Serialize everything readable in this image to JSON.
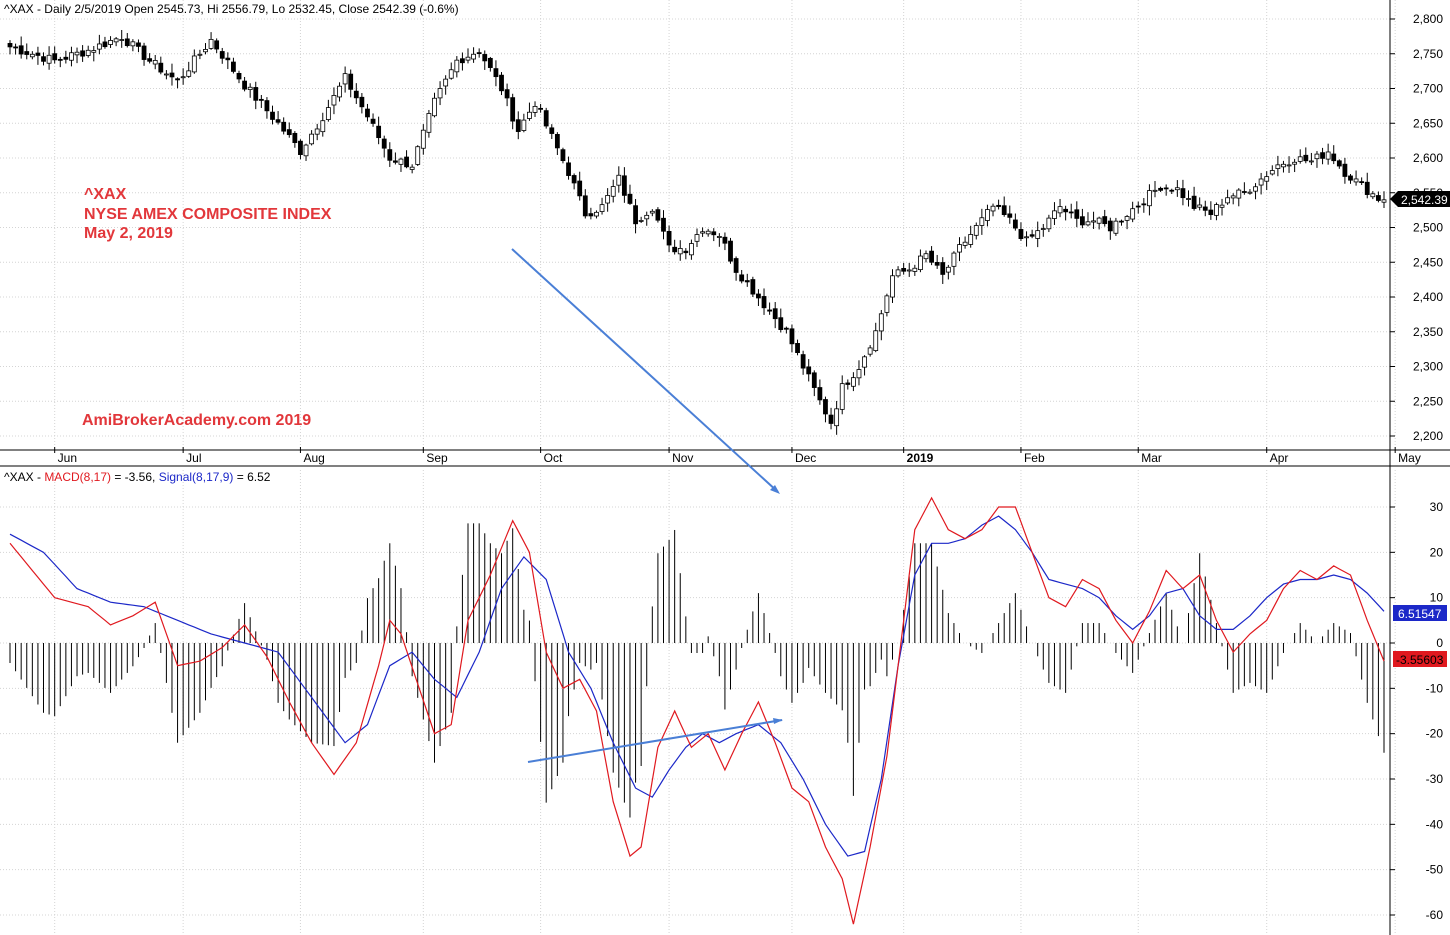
{
  "header": {
    "price": "^XAX - Daily 2/5/2019 Open 2545.73, Hi 2556.79, Lo 2532.45, Close 2542.39 (-0.6%)",
    "macd_prefix": "^XAX - ",
    "macd_label": "MACD(8,17)",
    "macd_value": " = -3.56, ",
    "signal_label": "Signal(8,17,9)",
    "signal_value": " = 6.52"
  },
  "annotations": {
    "symbol": "^XAX",
    "index_name": "NYSE AMEX COMPOSITE INDEX",
    "date": "May 2, 2019",
    "watermark": "AmiBrokerAcademy.com  2019"
  },
  "badges": {
    "last_close": "2,542.39",
    "signal": "6.51547",
    "macd": "-3.55603"
  },
  "colors": {
    "macd": "#e0191f",
    "signal": "#1c28c8",
    "text_red": "#e2373b",
    "trend_arrow": "#4a7fd6",
    "grid": "#d4d4d4"
  },
  "chart_data": [
    {
      "type": "candlestick",
      "title": "^XAX - Daily 2/5/2019 Open 2545.73, Hi 2556.79, Lo 2532.45, Close 2542.39 (-0.6%)",
      "x_month_labels": [
        "Jun",
        "Jul",
        "Aug",
        "Sep",
        "Oct",
        "Nov",
        "Dec",
        "2019",
        "Feb",
        "Mar",
        "Apr",
        "May"
      ],
      "ylim": [
        2160,
        2830
      ],
      "y_ticks": [
        "2,200",
        "2,250",
        "2,300",
        "2,350",
        "2,400",
        "2,450",
        "2,500",
        "2,550",
        "2,600",
        "2,650",
        "2,700",
        "2,750",
        "2,800"
      ],
      "grid": true,
      "close_anchors": [
        [
          0,
          2760
        ],
        [
          8,
          2740
        ],
        [
          14,
          2755
        ],
        [
          20,
          2775
        ],
        [
          25,
          2740
        ],
        [
          30,
          2710
        ],
        [
          36,
          2770
        ],
        [
          42,
          2705
        ],
        [
          48,
          2650
        ],
        [
          52,
          2610
        ],
        [
          56,
          2660
        ],
        [
          60,
          2715
        ],
        [
          64,
          2660
        ],
        [
          68,
          2600
        ],
        [
          72,
          2590
        ],
        [
          76,
          2680
        ],
        [
          80,
          2740
        ],
        [
          84,
          2755
        ],
        [
          88,
          2700
        ],
        [
          91,
          2640
        ],
        [
          94,
          2680
        ],
        [
          97,
          2630
        ],
        [
          100,
          2580
        ],
        [
          103,
          2520
        ],
        [
          106,
          2530
        ],
        [
          109,
          2570
        ],
        [
          112,
          2510
        ],
        [
          115,
          2530
        ],
        [
          118,
          2470
        ],
        [
          121,
          2470
        ],
        [
          124,
          2500
        ],
        [
          127,
          2490
        ],
        [
          130,
          2440
        ],
        [
          133,
          2410
        ],
        [
          136,
          2380
        ],
        [
          139,
          2350
        ],
        [
          142,
          2300
        ],
        [
          145,
          2250
        ],
        [
          147,
          2220
        ],
        [
          149,
          2270
        ],
        [
          152,
          2300
        ],
        [
          155,
          2350
        ],
        [
          158,
          2430
        ],
        [
          161,
          2440
        ],
        [
          164,
          2460
        ],
        [
          167,
          2430
        ],
        [
          170,
          2470
        ],
        [
          173,
          2500
        ],
        [
          176,
          2530
        ],
        [
          179,
          2510
        ],
        [
          182,
          2480
        ],
        [
          185,
          2500
        ],
        [
          188,
          2530
        ],
        [
          191,
          2510
        ],
        [
          194,
          2510
        ],
        [
          197,
          2500
        ],
        [
          200,
          2520
        ],
        [
          203,
          2540
        ],
        [
          206,
          2560
        ],
        [
          209,
          2555
        ],
        [
          212,
          2530
        ],
        [
          215,
          2520
        ],
        [
          218,
          2545
        ],
        [
          221,
          2550
        ],
        [
          224,
          2570
        ],
        [
          227,
          2590
        ],
        [
          230,
          2600
        ],
        [
          233,
          2595
        ],
        [
          236,
          2610
        ],
        [
          239,
          2580
        ],
        [
          242,
          2560
        ],
        [
          245,
          2542
        ]
      ]
    },
    {
      "type": "line",
      "title": "^XAX - MACD(8,17) = -3.56, Signal(8,17,9) = 6.52",
      "ylim": [
        -63,
        34
      ],
      "y_ticks": [
        "-60",
        "-50",
        "-40",
        "-30",
        "-20",
        "-10",
        "0",
        "10",
        "20",
        "30"
      ],
      "grid": true,
      "series": [
        {
          "name": "MACD(8,17)",
          "color": "#e0191f",
          "points": [
            [
              0,
              22
            ],
            [
              8,
              10
            ],
            [
              14,
              8
            ],
            [
              18,
              4
            ],
            [
              22,
              6
            ],
            [
              26,
              9
            ],
            [
              30,
              -5
            ],
            [
              34,
              -4
            ],
            [
              38,
              -1
            ],
            [
              42,
              4
            ],
            [
              46,
              -3
            ],
            [
              50,
              -13
            ],
            [
              54,
              -22
            ],
            [
              58,
              -29
            ],
            [
              62,
              -22
            ],
            [
              66,
              -5
            ],
            [
              68,
              5
            ],
            [
              70,
              2
            ],
            [
              73,
              -9
            ],
            [
              76,
              -20
            ],
            [
              79,
              -18
            ],
            [
              82,
              5
            ],
            [
              86,
              15
            ],
            [
              90,
              27
            ],
            [
              93,
              20
            ],
            [
              96,
              -2
            ],
            [
              99,
              -10
            ],
            [
              102,
              -8
            ],
            [
              105,
              -15
            ],
            [
              108,
              -35
            ],
            [
              111,
              -47
            ],
            [
              113,
              -45
            ],
            [
              116,
              -23
            ],
            [
              119,
              -15
            ],
            [
              122,
              -23
            ],
            [
              125,
              -20
            ],
            [
              128,
              -28
            ],
            [
              131,
              -20
            ],
            [
              134,
              -13
            ],
            [
              137,
              -22
            ],
            [
              140,
              -32
            ],
            [
              143,
              -35
            ],
            [
              146,
              -45
            ],
            [
              149,
              -52
            ],
            [
              151,
              -62
            ],
            [
              154,
              -45
            ],
            [
              157,
              -25
            ],
            [
              159,
              -5
            ],
            [
              162,
              25
            ],
            [
              165,
              32
            ],
            [
              168,
              25
            ],
            [
              171,
              23
            ],
            [
              174,
              25
            ],
            [
              177,
              30
            ],
            [
              180,
              30
            ],
            [
              183,
              20
            ],
            [
              186,
              10
            ],
            [
              189,
              8
            ],
            [
              192,
              14
            ],
            [
              195,
              12
            ],
            [
              198,
              5
            ],
            [
              201,
              0
            ],
            [
              204,
              7
            ],
            [
              207,
              16
            ],
            [
              210,
              12
            ],
            [
              213,
              15
            ],
            [
              216,
              5
            ],
            [
              219,
              -2
            ],
            [
              222,
              2
            ],
            [
              225,
              5
            ],
            [
              228,
              12
            ],
            [
              231,
              16
            ],
            [
              234,
              14
            ],
            [
              237,
              17
            ],
            [
              240,
              15
            ],
            [
              243,
              5
            ],
            [
              246,
              -4
            ]
          ]
        },
        {
          "name": "Signal(8,17,9)",
          "color": "#1c28c8",
          "points": [
            [
              0,
              24
            ],
            [
              6,
              20
            ],
            [
              12,
              12
            ],
            [
              18,
              9
            ],
            [
              24,
              8
            ],
            [
              30,
              5
            ],
            [
              36,
              2
            ],
            [
              42,
              0
            ],
            [
              48,
              -2
            ],
            [
              54,
              -12
            ],
            [
              60,
              -22
            ],
            [
              64,
              -18
            ],
            [
              68,
              -5
            ],
            [
              72,
              -2
            ],
            [
              76,
              -8
            ],
            [
              80,
              -12
            ],
            [
              84,
              -2
            ],
            [
              88,
              12
            ],
            [
              92,
              19
            ],
            [
              96,
              14
            ],
            [
              100,
              -2
            ],
            [
              104,
              -10
            ],
            [
              108,
              -22
            ],
            [
              112,
              -32
            ],
            [
              115,
              -34
            ],
            [
              118,
              -28
            ],
            [
              121,
              -23
            ],
            [
              124,
              -20
            ],
            [
              127,
              -22
            ],
            [
              130,
              -20
            ],
            [
              134,
              -18
            ],
            [
              138,
              -22
            ],
            [
              142,
              -30
            ],
            [
              146,
              -40
            ],
            [
              150,
              -47
            ],
            [
              153,
              -46
            ],
            [
              156,
              -30
            ],
            [
              159,
              -5
            ],
            [
              162,
              15
            ],
            [
              165,
              22
            ],
            [
              168,
              22
            ],
            [
              171,
              23
            ],
            [
              174,
              26
            ],
            [
              177,
              28
            ],
            [
              180,
              25
            ],
            [
              183,
              20
            ],
            [
              186,
              14
            ],
            [
              189,
              13
            ],
            [
              192,
              12
            ],
            [
              195,
              10
            ],
            [
              198,
              6
            ],
            [
              201,
              3
            ],
            [
              204,
              6
            ],
            [
              207,
              11
            ],
            [
              210,
              12
            ],
            [
              213,
              6
            ],
            [
              216,
              3
            ],
            [
              219,
              3
            ],
            [
              222,
              6
            ],
            [
              225,
              10
            ],
            [
              228,
              13
            ],
            [
              231,
              14
            ],
            [
              234,
              14
            ],
            [
              237,
              15
            ],
            [
              240,
              14
            ],
            [
              243,
              11
            ],
            [
              246,
              7
            ]
          ]
        }
      ]
    }
  ]
}
